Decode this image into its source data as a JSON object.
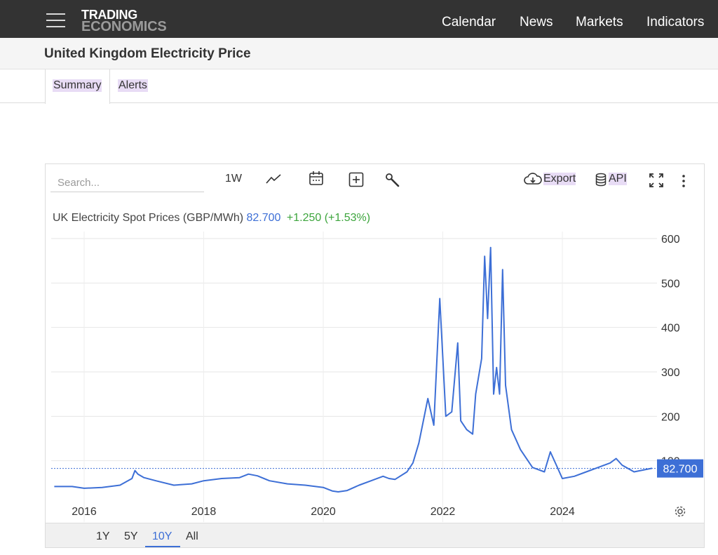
{
  "nav": {
    "logo_line1": "TRADING",
    "logo_line2": "ECONOMICS",
    "links": [
      "Calendar",
      "News",
      "Markets",
      "Indicators"
    ]
  },
  "page": {
    "title": "United Kingdom Electricity Price",
    "tabs": [
      "Summary",
      "Alerts"
    ],
    "active_tab": "Summary"
  },
  "toolbar": {
    "search_placeholder": "Search...",
    "interval": "1W",
    "export_label": "Export",
    "api_label": "API",
    "icons": [
      "line-chart-icon",
      "calendar-icon",
      "compare-plus-icon",
      "wrench-icon",
      "cloud-download-icon",
      "database-icon",
      "fullscreen-icon",
      "more-vertical-icon",
      "settings-gear-icon"
    ]
  },
  "legend": {
    "series": "UK Electricity Spot Prices (GBP/MWh)",
    "last": "82.700",
    "change": "+1.250 (+1.53%)"
  },
  "range": {
    "options": [
      "1Y",
      "5Y",
      "10Y",
      "All"
    ],
    "active": "10Y"
  },
  "colors": {
    "line": "#3d6fd6",
    "positive": "#3da53d",
    "topbar": "#333333",
    "highlight": "#e8dcf5"
  },
  "chart_data": {
    "type": "line",
    "series_name": "UK Electricity Spot Prices (GBP/MWh)",
    "ylim": [
      0,
      600
    ],
    "yticks": [
      100,
      200,
      300,
      400,
      500,
      600
    ],
    "xticks": [
      "2016",
      "2018",
      "2020",
      "2022",
      "2024"
    ],
    "last_value_label": "82.700",
    "grid": true,
    "x": [
      2015.5,
      2015.8,
      2016.0,
      2016.3,
      2016.6,
      2016.8,
      2016.85,
      2016.9,
      2017.0,
      2017.2,
      2017.5,
      2017.8,
      2018.0,
      2018.3,
      2018.6,
      2018.75,
      2018.9,
      2019.1,
      2019.4,
      2019.7,
      2020.0,
      2020.15,
      2020.25,
      2020.4,
      2020.6,
      2020.8,
      2021.0,
      2021.1,
      2021.2,
      2021.4,
      2021.5,
      2021.6,
      2021.75,
      2021.85,
      2021.95,
      2022.05,
      2022.15,
      2022.25,
      2022.3,
      2022.4,
      2022.5,
      2022.55,
      2022.65,
      2022.7,
      2022.75,
      2022.8,
      2022.85,
      2022.9,
      2022.95,
      2023.0,
      2023.05,
      2023.15,
      2023.3,
      2023.5,
      2023.7,
      2023.8,
      2023.9,
      2024.0,
      2024.2,
      2024.4,
      2024.6,
      2024.8,
      2024.9,
      2025.0,
      2025.2,
      2025.5
    ],
    "values": [
      42,
      42,
      38,
      40,
      45,
      60,
      78,
      70,
      62,
      55,
      45,
      48,
      55,
      60,
      62,
      70,
      66,
      55,
      48,
      45,
      40,
      32,
      30,
      33,
      45,
      55,
      65,
      60,
      58,
      75,
      95,
      140,
      240,
      180,
      465,
      200,
      210,
      365,
      190,
      170,
      160,
      250,
      330,
      560,
      420,
      580,
      250,
      310,
      250,
      530,
      270,
      170,
      125,
      85,
      75,
      120,
      90,
      60,
      65,
      75,
      85,
      95,
      105,
      90,
      75,
      83
    ]
  }
}
